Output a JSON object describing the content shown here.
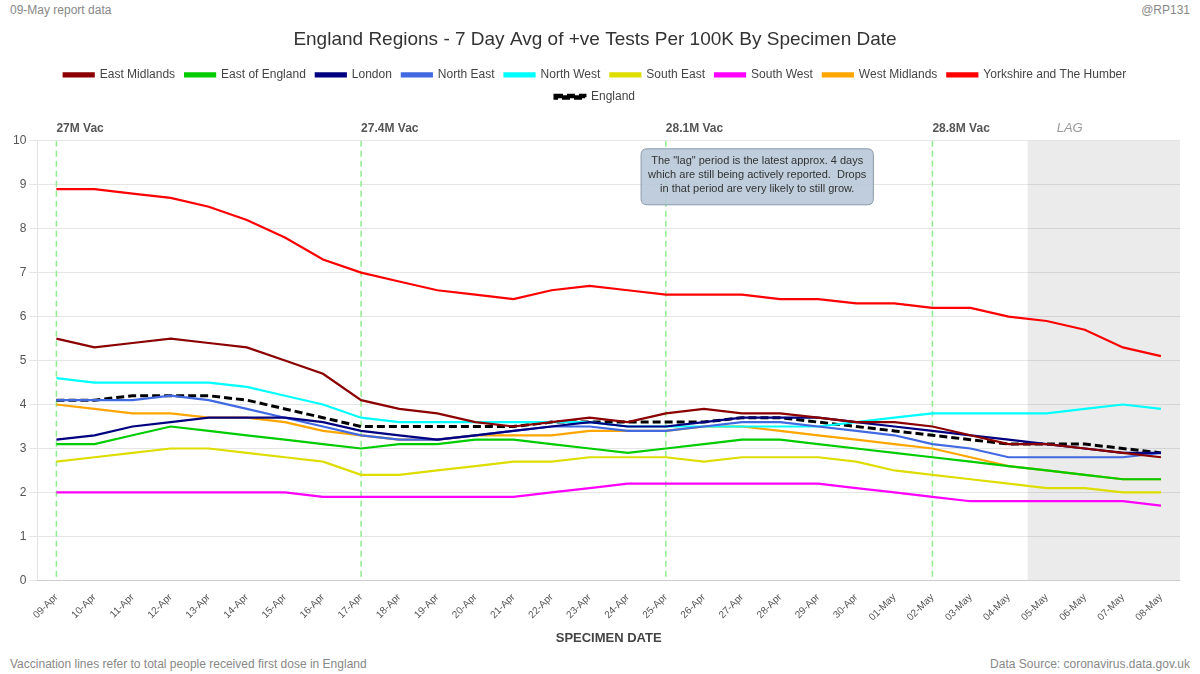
{
  "chart_data": {
    "type": "line",
    "title": "England Regions - 7 Day Avg of +ve Tests Per 100K By Specimen Date",
    "subtitle_left": "09-May report data",
    "subtitle_right": "@RP131",
    "x_label": "SPECIMEN DATE",
    "footnote_left": "Vaccination lines refer to total people received first dose in England",
    "footnote_right": "Data Source: coronavirus.data.gov.uk",
    "categories": [
      "09-Apr",
      "10-Apr",
      "11-Apr",
      "12-Apr",
      "13-Apr",
      "14-Apr",
      "15-Apr",
      "16-Apr",
      "17-Apr",
      "18-Apr",
      "19-Apr",
      "20-Apr",
      "21-Apr",
      "22-Apr",
      "23-Apr",
      "24-Apr",
      "25-Apr",
      "26-Apr",
      "27-Apr",
      "28-Apr",
      "29-Apr",
      "30-Apr",
      "01-May",
      "02-May",
      "03-May",
      "04-May",
      "05-May",
      "06-May",
      "07-May",
      "08-May"
    ],
    "series": [
      {
        "name": "East Midlands",
        "color": "#8B0000",
        "line_style": "solid",
        "values": [
          5.5,
          5.3,
          5.4,
          5.5,
          5.4,
          5.3,
          5.0,
          4.7,
          4.1,
          3.9,
          3.8,
          3.6,
          3.5,
          3.6,
          3.7,
          3.6,
          3.8,
          3.9,
          3.8,
          3.8,
          3.7,
          3.6,
          3.6,
          3.5,
          3.3,
          3.1,
          3.1,
          3.0,
          2.9,
          2.8
        ]
      },
      {
        "name": "East of England",
        "color": "#00CC00",
        "line_style": "solid",
        "values": [
          3.1,
          3.1,
          3.3,
          3.5,
          3.4,
          3.3,
          3.2,
          3.1,
          3.0,
          3.1,
          3.1,
          3.2,
          3.2,
          3.1,
          3.0,
          2.9,
          3.0,
          3.1,
          3.2,
          3.2,
          3.1,
          3.0,
          2.9,
          2.8,
          2.7,
          2.6,
          2.5,
          2.4,
          2.3,
          2.3
        ]
      },
      {
        "name": "London",
        "color": "#000080",
        "line_style": "solid",
        "values": [
          3.2,
          3.3,
          3.5,
          3.6,
          3.7,
          3.7,
          3.7,
          3.6,
          3.4,
          3.3,
          3.2,
          3.3,
          3.4,
          3.5,
          3.6,
          3.5,
          3.5,
          3.6,
          3.7,
          3.7,
          3.7,
          3.6,
          3.5,
          3.4,
          3.3,
          3.2,
          3.1,
          3.0,
          2.9,
          2.9
        ]
      },
      {
        "name": "North East",
        "color": "#4169E1",
        "line_style": "solid",
        "values": [
          4.1,
          4.1,
          4.1,
          4.2,
          4.1,
          3.9,
          3.7,
          3.5,
          3.3,
          3.2,
          3.2,
          3.3,
          3.4,
          3.5,
          3.5,
          3.4,
          3.4,
          3.5,
          3.6,
          3.6,
          3.5,
          3.4,
          3.3,
          3.1,
          3.0,
          2.8,
          2.8,
          2.8,
          2.8,
          2.9
        ]
      },
      {
        "name": "North West",
        "color": "#00FFFF",
        "line_style": "solid",
        "values": [
          4.6,
          4.5,
          4.5,
          4.5,
          4.5,
          4.4,
          4.2,
          4.0,
          3.7,
          3.6,
          3.6,
          3.6,
          3.6,
          3.6,
          3.6,
          3.5,
          3.5,
          3.5,
          3.5,
          3.5,
          3.5,
          3.6,
          3.7,
          3.8,
          3.8,
          3.8,
          3.8,
          3.9,
          4.0,
          3.9
        ]
      },
      {
        "name": "South East",
        "color": "#DDDD00",
        "line_style": "solid",
        "values": [
          2.7,
          2.8,
          2.9,
          3.0,
          3.0,
          2.9,
          2.8,
          2.7,
          2.4,
          2.4,
          2.5,
          2.6,
          2.7,
          2.7,
          2.8,
          2.8,
          2.8,
          2.7,
          2.8,
          2.8,
          2.8,
          2.7,
          2.5,
          2.4,
          2.3,
          2.2,
          2.1,
          2.1,
          2.0,
          2.0
        ]
      },
      {
        "name": "South West",
        "color": "#FF00FF",
        "line_style": "solid",
        "values": [
          2.0,
          2.0,
          2.0,
          2.0,
          2.0,
          2.0,
          2.0,
          1.9,
          1.9,
          1.9,
          1.9,
          1.9,
          1.9,
          2.0,
          2.1,
          2.2,
          2.2,
          2.2,
          2.2,
          2.2,
          2.2,
          2.1,
          2.0,
          1.9,
          1.8,
          1.8,
          1.8,
          1.8,
          1.8,
          1.7
        ]
      },
      {
        "name": "West Midlands",
        "color": "#FFA500",
        "line_style": "solid",
        "values": [
          4.0,
          3.9,
          3.8,
          3.8,
          3.7,
          3.7,
          3.6,
          3.4,
          3.3,
          3.2,
          3.2,
          3.3,
          3.3,
          3.3,
          3.4,
          3.4,
          3.4,
          3.5,
          3.5,
          3.4,
          3.3,
          3.2,
          3.1,
          3.0,
          2.8,
          2.6,
          2.5,
          2.4,
          2.3,
          2.3
        ]
      },
      {
        "name": "Yorkshire and The Humber",
        "color": "#FF0000",
        "line_style": "solid",
        "values": [
          8.9,
          8.9,
          8.8,
          8.7,
          8.5,
          8.2,
          7.8,
          7.3,
          7.0,
          6.8,
          6.6,
          6.5,
          6.4,
          6.6,
          6.7,
          6.6,
          6.5,
          6.5,
          6.5,
          6.4,
          6.4,
          6.3,
          6.3,
          6.2,
          6.2,
          6.0,
          5.9,
          5.7,
          5.3,
          5.1
        ]
      },
      {
        "name": "England",
        "color": "#000000",
        "line_style": "dashed",
        "values": [
          4.1,
          4.1,
          4.2,
          4.2,
          4.2,
          4.1,
          3.9,
          3.7,
          3.5,
          3.5,
          3.5,
          3.5,
          3.5,
          3.6,
          3.6,
          3.6,
          3.6,
          3.6,
          3.7,
          3.7,
          3.6,
          3.5,
          3.4,
          3.3,
          3.2,
          3.1,
          3.1,
          3.1,
          3.0,
          2.9
        ]
      }
    ],
    "ylim": [
      0,
      10
    ],
    "yticks": [
      0,
      1,
      2,
      3,
      4,
      5,
      6,
      7,
      8,
      9,
      10
    ],
    "grid": true,
    "legend": "top",
    "vaccination_lines": {
      "color": "#90ee90",
      "line_style": "dashed",
      "lines": [
        {
          "x": "09-Apr",
          "label": "27M Vac"
        },
        {
          "x": "17-Apr",
          "label": "27.4M Vac"
        },
        {
          "x": "25-Apr",
          "label": "28.1M Vac"
        },
        {
          "x": "02-May",
          "label": "28.8M Vac"
        }
      ]
    },
    "lag_period": {
      "start": "05-May",
      "label": "LAG"
    },
    "annotation": "The \"lag\" period is the latest approx. 4 days\nwhich are still being actively reported.  Drops\nin that period are very likely to still grow."
  }
}
